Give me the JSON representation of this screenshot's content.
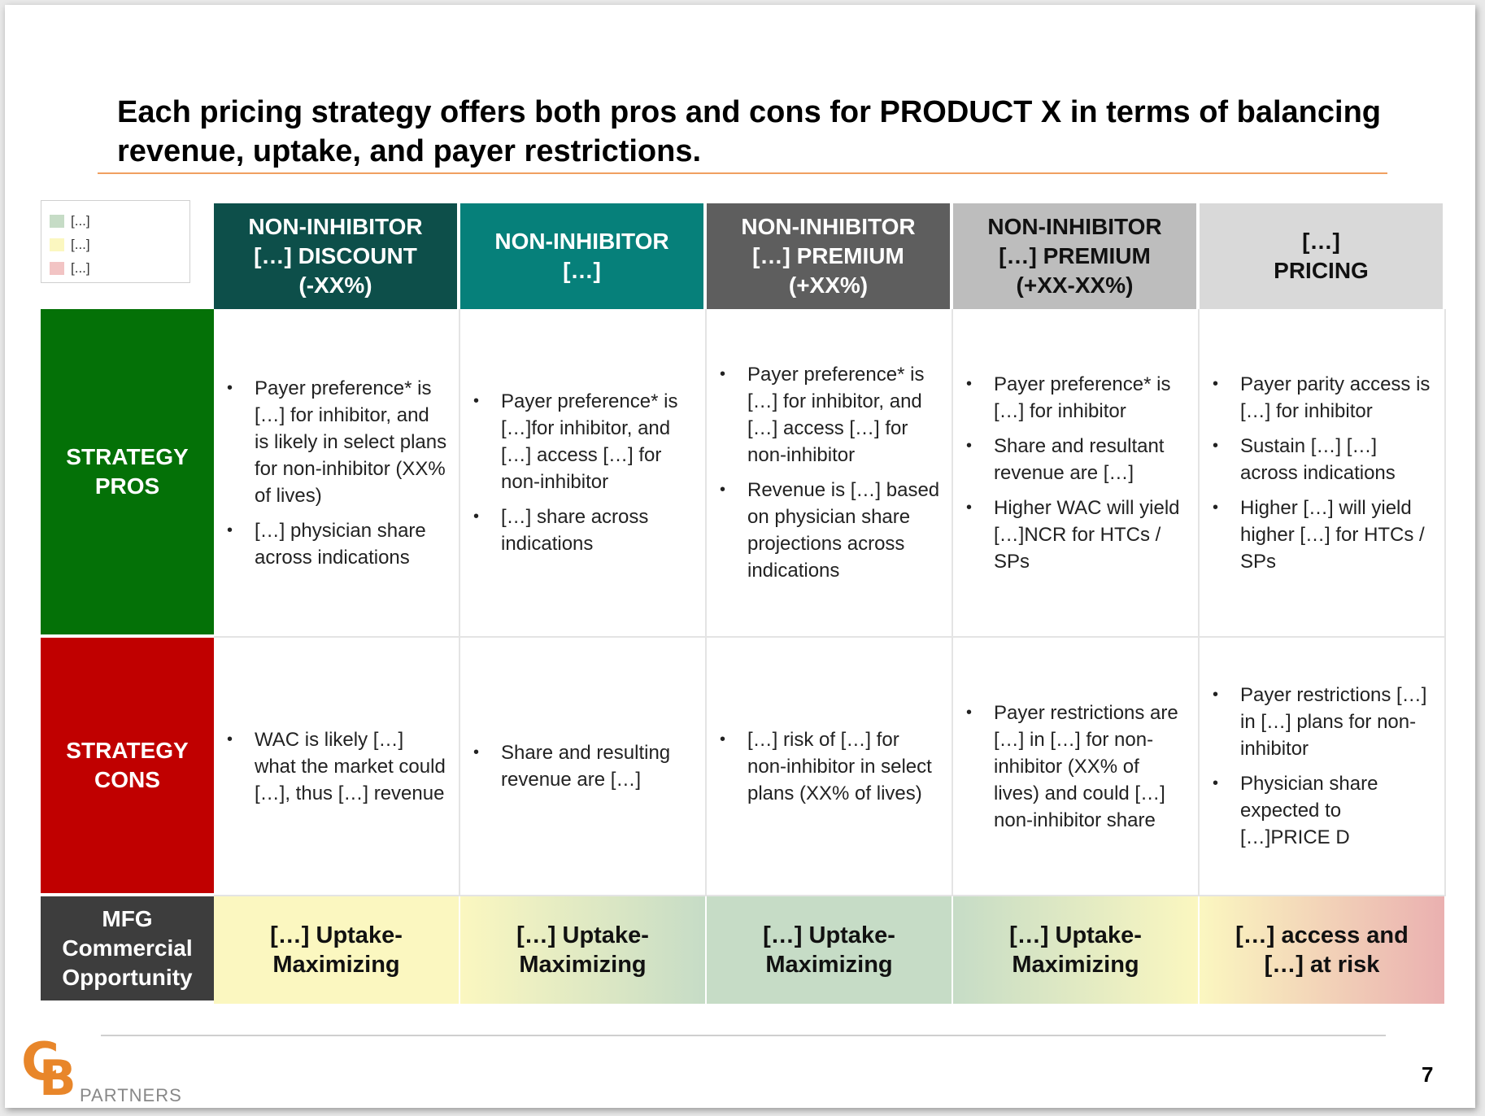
{
  "title": "Each pricing strategy offers both pros and cons for PRODUCT X in terms of balancing revenue, uptake, and payer restrictions.",
  "legend": [
    {
      "label": "[...]",
      "color": "#c6dcc6"
    },
    {
      "label": "[...]",
      "color": "#fbf7c0"
    },
    {
      "label": "[...]",
      "color": "#f2c4c4"
    }
  ],
  "columns": [
    {
      "header": "NON-INHIBITOR\n[…] DISCOUNT\n(-XX%)",
      "bg": "#0d4f4a",
      "fg": "#ffffff"
    },
    {
      "header": "NON-INHIBITOR\n[…]",
      "bg": "#06807a",
      "fg": "#ffffff"
    },
    {
      "header": "NON-INHIBITOR\n[…] PREMIUM\n(+XX%)",
      "bg": "#5e5e5e",
      "fg": "#ffffff"
    },
    {
      "header": "NON-INHIBITOR\n[…] PREMIUM\n(+XX-XX%)",
      "bg": "#bdbdbd",
      "fg": "#111111"
    },
    {
      "header": "[…]\nPRICING",
      "bg": "#d9d9d9",
      "fg": "#111111"
    }
  ],
  "rows": {
    "pros_label": "STRATEGY\nPROS",
    "cons_label": "STRATEGY\nCONS",
    "opportunity_label": "MFG\nCommercial\nOpportunity"
  },
  "pros": [
    [
      "Payer preference* is […] for inhibitor, and is likely in select plans for non-inhibitor (XX% of lives)",
      "[…] physician share across indications"
    ],
    [
      "Payer preference* is […]for inhibitor, and […] access […] for non-inhibitor",
      "[…] share across indications"
    ],
    [
      "Payer preference* is […] for inhibitor, and […] access […] for non-inhibitor",
      "Revenue is […] based on physician share projections across indications"
    ],
    [
      "Payer preference* is […] for inhibitor",
      "Share and resultant revenue are […]",
      "Higher WAC will yield […]NCR for HTCs / SPs"
    ],
    [
      "Payer parity access is […] for inhibitor",
      "Sustain […] […] across indications",
      "Higher […] will yield higher […] for HTCs / SPs"
    ]
  ],
  "cons": [
    [
      "WAC is likely […] what the market could […], thus […] revenue"
    ],
    [
      "Share and resulting revenue are […]"
    ],
    [
      "[…] risk of […] for non-inhibitor in select plans (XX% of lives)"
    ],
    [
      "Payer restrictions are […] in […] for non-inhibitor (XX% of lives) and could […] non-inhibitor share"
    ],
    [
      "Payer restrictions […] in […] plans for non-inhibitor",
      "Physician share expected to […]PRICE D"
    ]
  ],
  "opportunity": [
    {
      "text": "[…] Uptake-\nMaximizing",
      "gradient": [
        "#fbf7c0",
        "#fbf7c0"
      ]
    },
    {
      "text": "[…] Uptake-\nMaximizing",
      "gradient": [
        "#fbf7c0",
        "#c6dcc6"
      ]
    },
    {
      "text": "[…] Uptake-\nMaximizing",
      "gradient": [
        "#c6dcc6",
        "#c6dcc6"
      ]
    },
    {
      "text": "[…] Uptake-\nMaximizing",
      "gradient": [
        "#c6dcc6",
        "#fbf7c0"
      ]
    },
    {
      "text": "[…] access and\n[…] at risk",
      "gradient": [
        "#fbf7c0",
        "#eab0b0"
      ]
    }
  ],
  "colors": {
    "pros_bg": "#047107",
    "cons_bg": "#c00000",
    "opportunity_bg": "#3d3d3d",
    "accent_orange": "#e8862a"
  },
  "logo": {
    "letters": "CB",
    "text": "PARTNERS"
  },
  "page_number": "7"
}
